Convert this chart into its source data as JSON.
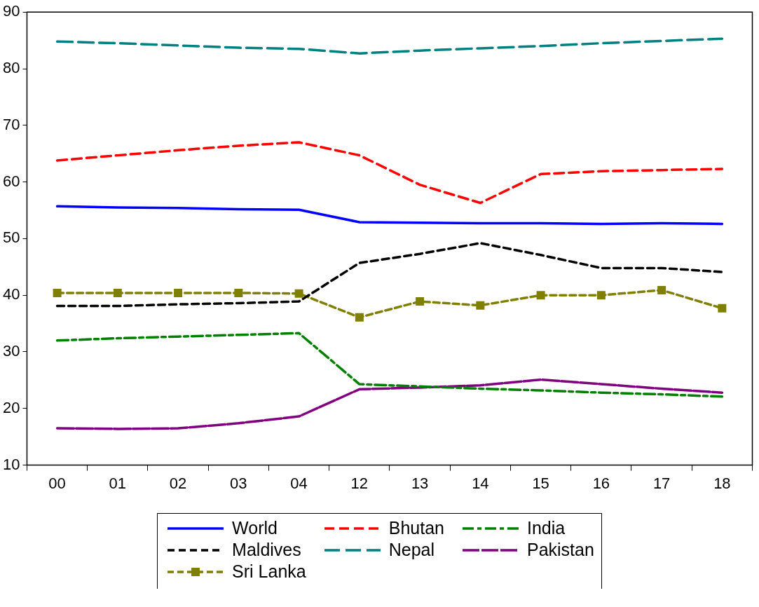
{
  "chart_data": {
    "type": "line",
    "categories": [
      "00",
      "01",
      "02",
      "03",
      "04",
      "12",
      "13",
      "14",
      "15",
      "16",
      "17",
      "18"
    ],
    "ylim": [
      10,
      90
    ],
    "yticks": [
      10,
      20,
      30,
      40,
      50,
      60,
      70,
      80,
      90
    ],
    "grid": false,
    "legend": "bottom",
    "series": [
      {
        "name": "World",
        "color": "#0000ff",
        "line_style": "solid",
        "marker": "none",
        "values": [
          55.7,
          55.5,
          55.4,
          55.2,
          55.1,
          52.9,
          52.8,
          52.7,
          52.7,
          52.6,
          52.7,
          52.6
        ]
      },
      {
        "name": "Bhutan",
        "color": "#ff0000",
        "line_style": "dashed",
        "marker": "none",
        "values": [
          63.8,
          64.7,
          65.6,
          66.4,
          67.0,
          64.7,
          59.5,
          56.3,
          61.4,
          61.9,
          62.1,
          62.3
        ]
      },
      {
        "name": "India",
        "color": "#008000",
        "line_style": "dashed",
        "marker": "none",
        "values": [
          32.0,
          32.4,
          32.7,
          33.0,
          33.3,
          24.3,
          23.9,
          23.5,
          23.2,
          22.8,
          22.5,
          22.1
        ]
      },
      {
        "name": "Maldives",
        "color": "#000000",
        "line_style": "dashed",
        "marker": "none",
        "values": [
          38.1,
          38.1,
          38.4,
          38.6,
          38.9,
          45.7,
          47.3,
          49.2,
          47.1,
          44.8,
          44.8,
          44.1
        ]
      },
      {
        "name": "Nepal",
        "color": "#008080",
        "line_style": "dashed",
        "marker": "none",
        "values": [
          84.8,
          84.5,
          84.1,
          83.7,
          83.5,
          82.7,
          83.2,
          83.6,
          84.0,
          84.5,
          84.9,
          85.3
        ]
      },
      {
        "name": "Pakistan",
        "color": "#800080",
        "line_style": "dashed",
        "marker": "none",
        "values": [
          16.5,
          16.4,
          16.5,
          17.4,
          18.6,
          23.4,
          23.7,
          24.1,
          25.1,
          24.3,
          23.5,
          22.8
        ]
      },
      {
        "name": "Sri Lanka",
        "color": "#808000",
        "line_style": "dashed",
        "marker": "square",
        "values": [
          40.4,
          40.4,
          40.4,
          40.4,
          40.3,
          36.1,
          38.9,
          38.2,
          40.0,
          40.0,
          40.9,
          37.7
        ]
      }
    ]
  }
}
